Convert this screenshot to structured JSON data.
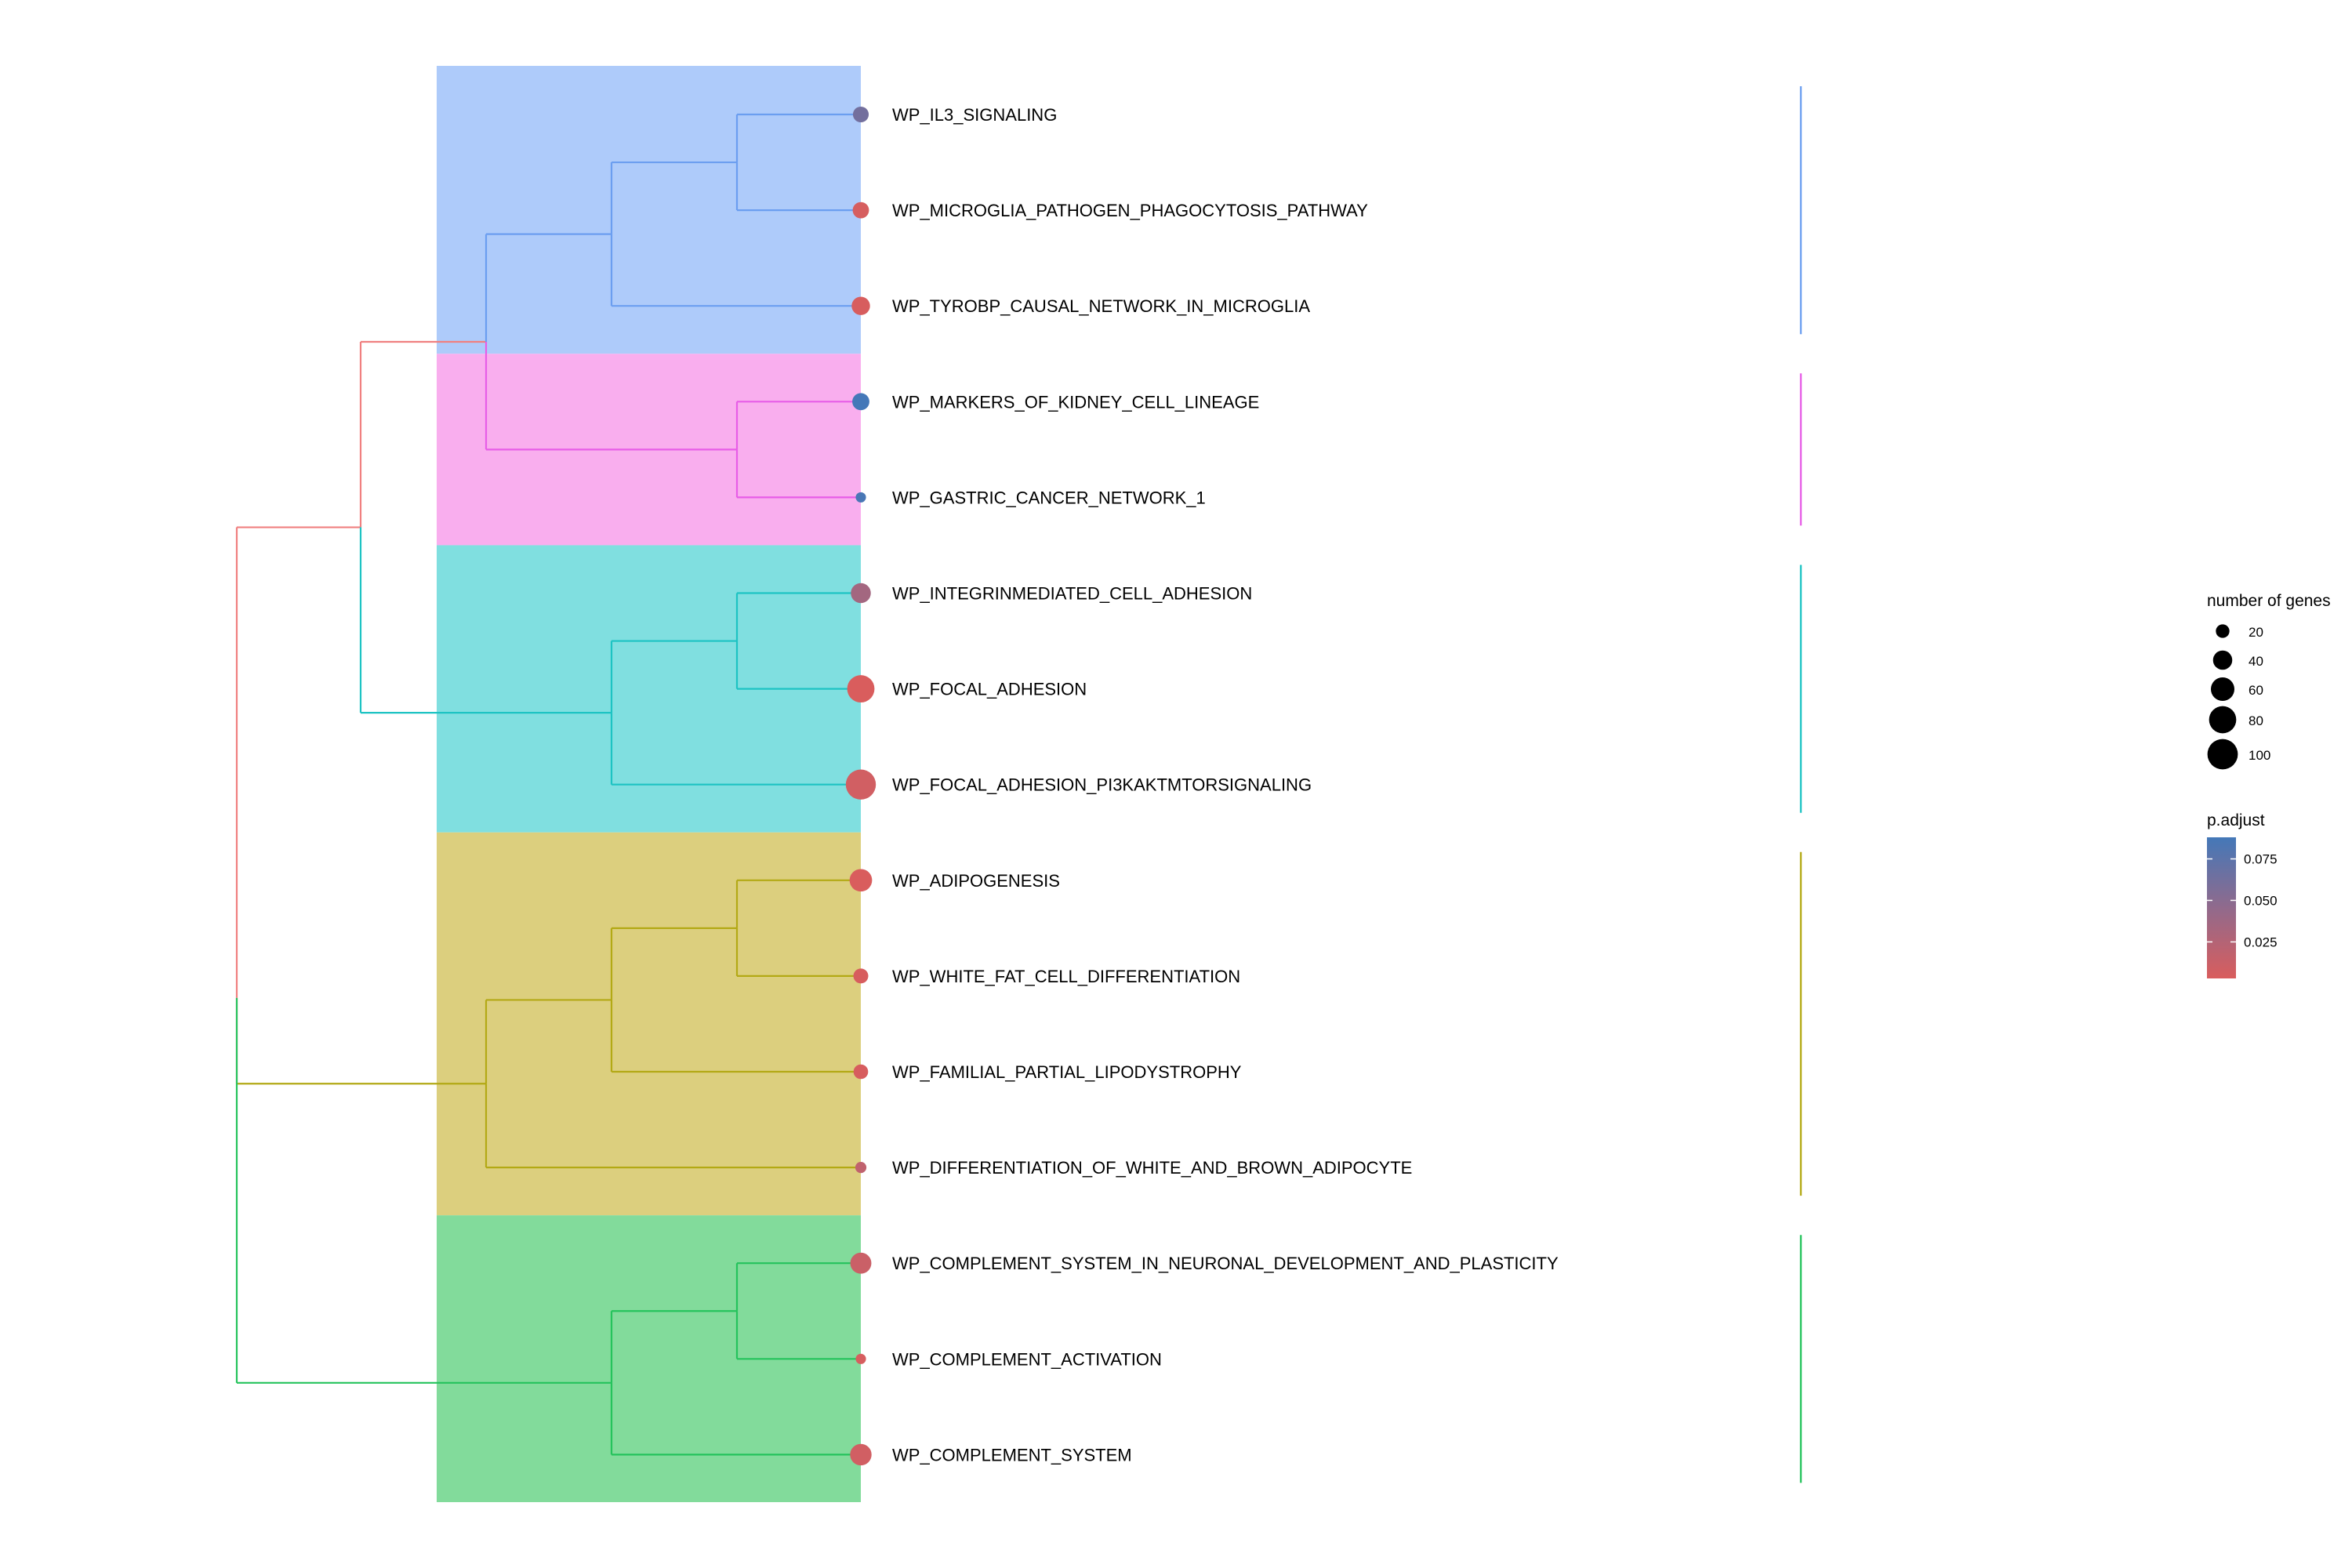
{
  "chart_data": {
    "type": "dendrogram",
    "title": "",
    "terms": [
      {
        "label": "WP_IL3_SIGNALING",
        "count": 28,
        "p_adjust": 0.062,
        "cluster": 0
      },
      {
        "label": "WP_MICROGLIA_PATHOGEN_PHAGOCYTOSIS_PATHWAY",
        "count": 30,
        "p_adjust": 0.005,
        "cluster": 0
      },
      {
        "label": "WP_TYROBP_CAUSAL_NETWORK_IN_MICROGLIA",
        "count": 38,
        "p_adjust": 0.004,
        "cluster": 0
      },
      {
        "label": "WP_MARKERS_OF_KIDNEY_CELL_LINEAGE",
        "count": 33,
        "p_adjust": 0.088,
        "cluster": 1
      },
      {
        "label": "WP_GASTRIC_CANCER_NETWORK_1",
        "count": 12,
        "p_adjust": 0.085,
        "cluster": 1
      },
      {
        "label": "WP_INTEGRINMEDIATED_CELL_ADHESION",
        "count": 45,
        "p_adjust": 0.035,
        "cluster": 2
      },
      {
        "label": "WP_FOCAL_ADHESION",
        "count": 84,
        "p_adjust": 0.003,
        "cluster": 2
      },
      {
        "label": "WP_FOCAL_ADHESION_PI3KAKTMTORSIGNALING",
        "count": 102,
        "p_adjust": 0.008,
        "cluster": 2
      },
      {
        "label": "WP_ADIPOGENESIS",
        "count": 57,
        "p_adjust": 0.003,
        "cluster": 3
      },
      {
        "label": "WP_WHITE_FAT_CELL_DIFFERENTIATION",
        "count": 25,
        "p_adjust": 0.004,
        "cluster": 3
      },
      {
        "label": "WP_FAMILIAL_PARTIAL_LIPODYSTROPHY",
        "count": 24,
        "p_adjust": 0.004,
        "cluster": 3
      },
      {
        "label": "WP_DIFFERENTIATION_OF_WHITE_AND_BROWN_ADIPOCYTE",
        "count": 14,
        "p_adjust": 0.018,
        "cluster": 3
      },
      {
        "label": "WP_COMPLEMENT_SYSTEM_IN_NEURONAL_DEVELOPMENT_AND_PLASTICITY",
        "count": 50,
        "p_adjust": 0.012,
        "cluster": 4
      },
      {
        "label": "WP_COMPLEMENT_ACTIVATION",
        "count": 12,
        "p_adjust": 0.005,
        "cluster": 4
      },
      {
        "label": "WP_COMPLEMENT_SYSTEM",
        "count": 52,
        "p_adjust": 0.008,
        "cluster": 4
      }
    ],
    "clusters": [
      {
        "members": [
          0,
          1,
          2
        ],
        "color": "#6B9EF0",
        "fill": "#AECBFA"
      },
      {
        "members": [
          3,
          4
        ],
        "color": "#E75DE7",
        "fill": "#F9AEEE"
      },
      {
        "members": [
          5,
          6,
          7
        ],
        "color": "#1DC3C3",
        "fill": "#80DFE0"
      },
      {
        "members": [
          8,
          9,
          10,
          11
        ],
        "color": "#B3A915",
        "fill": "#DCCF7E"
      },
      {
        "members": [
          12,
          13,
          14
        ],
        "color": "#25C35C",
        "fill": "#82DB9B"
      }
    ],
    "tree": [
      [
        [
          [
            [
              0,
              1
            ],
            2
          ],
          [
            3,
            4
          ]
        ],
        [
          [
            5,
            6
          ],
          7
        ]
      ],
      [
        [
          [
            8,
            9
          ],
          10
        ],
        11
      ],
      [
        [
          12,
          13
        ],
        14
      ]
    ],
    "root_colors": {
      "upper": "#F08080",
      "lower": "#25C35C"
    },
    "size_legend": {
      "title": "number of genes",
      "breaks": [
        20,
        40,
        60,
        80,
        100
      ],
      "labels": [
        "20",
        "40",
        "60",
        "80",
        "100"
      ]
    },
    "color_legend": {
      "title": "p.adjust",
      "breaks": [
        0.075,
        0.05,
        0.025
      ],
      "labels": [
        "0.075",
        "0.050",
        "0.025"
      ],
      "range": [
        0.003,
        0.088
      ],
      "low_color": "#D95D5D",
      "high_color": "#4478B8"
    }
  }
}
